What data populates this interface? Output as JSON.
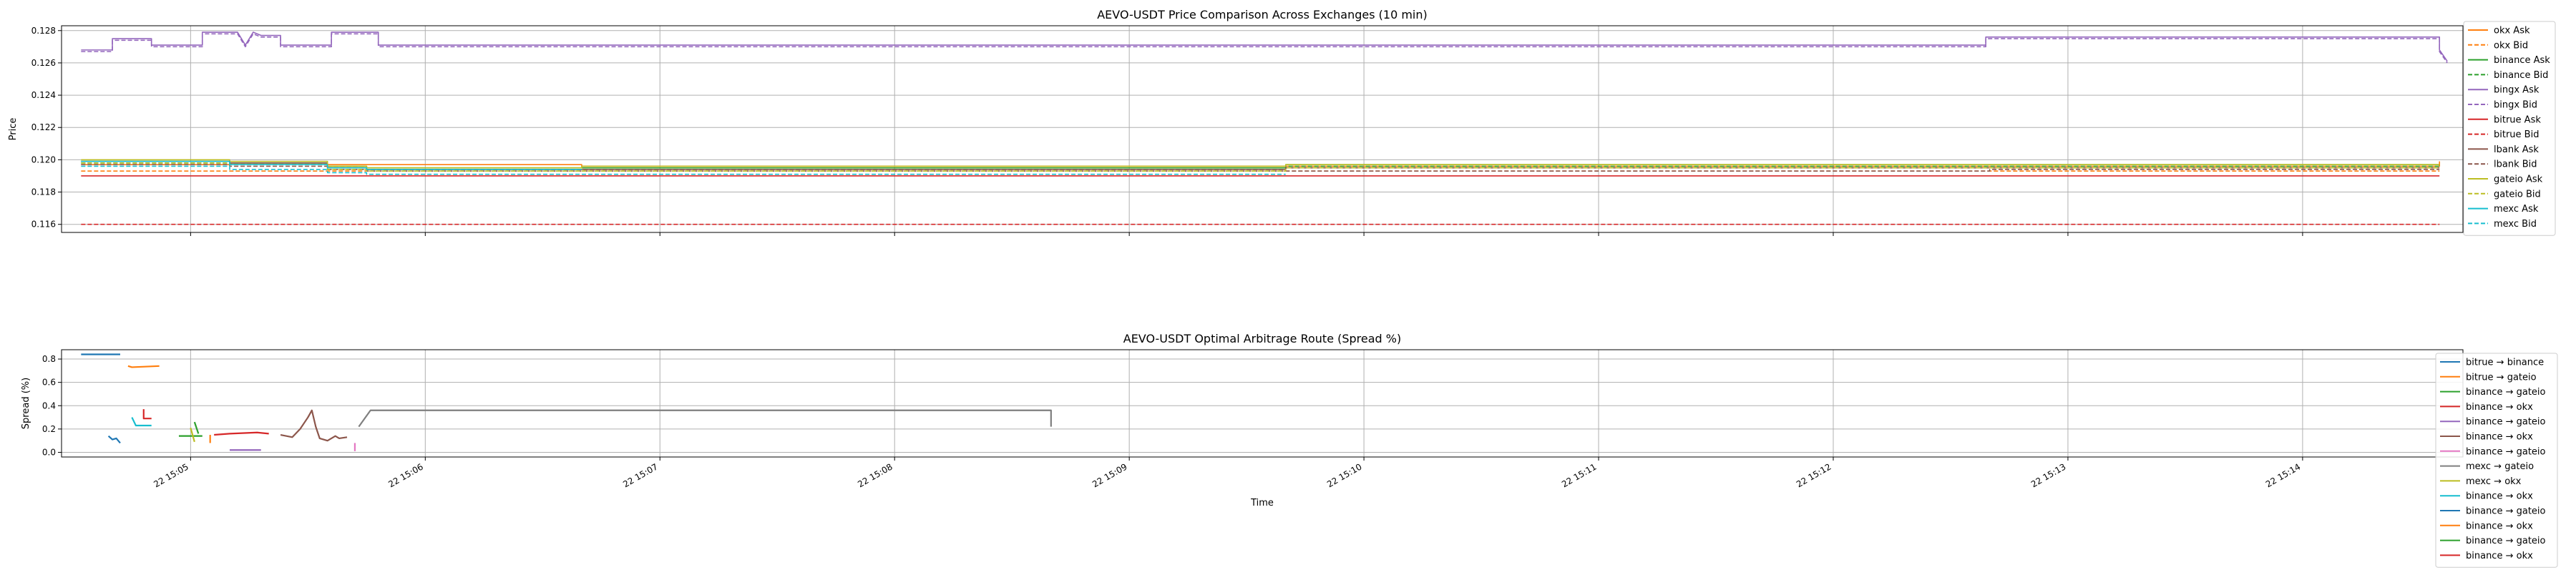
{
  "colors": {
    "blue": "#1f77b4",
    "orange": "#ff7f0e",
    "green": "#2ca02c",
    "red": "#d62728",
    "purple": "#9467bd",
    "brown": "#8c564b",
    "pink": "#e377c2",
    "gray": "#7f7f7f",
    "olive": "#bcbd22",
    "cyan": "#17becf"
  },
  "chart_data": [
    {
      "type": "line",
      "title": "AEVO-USDT Price Comparison Across Exchanges (10 min)",
      "xlabel": "",
      "ylabel": "Price",
      "xlim": [
        "15:04:27",
        "15:14:41"
      ],
      "ylim": [
        0.1155,
        0.1283
      ],
      "yticks": [
        "0.116",
        "0.118",
        "0.120",
        "0.122",
        "0.124",
        "0.126",
        "0.128"
      ],
      "grid": true,
      "legend_position": "right",
      "series": [
        {
          "name": "okx Ask",
          "color": "#ff7f0e",
          "dash": "solid",
          "points": [
            [
              "15:04:32",
              0.1197
            ],
            [
              "15:06:40",
              0.1197
            ],
            [
              "15:06:40",
              0.1196
            ],
            [
              "15:14:35",
              0.1196
            ],
            [
              "15:14:35",
              0.1199
            ]
          ]
        },
        {
          "name": "okx Bid",
          "color": "#ff7f0e",
          "dash": "dashed",
          "points": [
            [
              "15:04:32",
              0.1193
            ],
            [
              "15:14:35",
              0.1193
            ]
          ]
        },
        {
          "name": "binance Ask",
          "color": "#2ca02c",
          "dash": "solid",
          "points": [
            [
              "15:04:32",
              0.1199
            ],
            [
              "15:05:10",
              0.1199
            ],
            [
              "15:05:10",
              0.1198
            ],
            [
              "15:05:35",
              0.1198
            ],
            [
              "15:05:35",
              0.1196
            ],
            [
              "15:05:45",
              0.1196
            ],
            [
              "15:05:45",
              0.1195
            ],
            [
              "15:09:40",
              0.1195
            ],
            [
              "15:09:40",
              0.1197
            ],
            [
              "15:14:35",
              0.1197
            ]
          ]
        },
        {
          "name": "binance Bid",
          "color": "#2ca02c",
          "dash": "dashed",
          "points": [
            [
              "15:04:32",
              0.1198
            ],
            [
              "15:05:10",
              0.1198
            ],
            [
              "15:05:10",
              0.1197
            ],
            [
              "15:05:35",
              0.1197
            ],
            [
              "15:05:35",
              0.1195
            ],
            [
              "15:05:45",
              0.1195
            ],
            [
              "15:05:45",
              0.1194
            ],
            [
              "15:09:40",
              0.1194
            ],
            [
              "15:09:40",
              0.1196
            ],
            [
              "15:14:35",
              0.1196
            ]
          ]
        },
        {
          "name": "bingx Ask",
          "color": "#9467bd",
          "dash": "solid",
          "points": [
            [
              "15:04:32",
              0.1268
            ],
            [
              "15:04:40",
              0.1268
            ],
            [
              "15:04:40",
              0.1275
            ],
            [
              "15:04:50",
              0.1275
            ],
            [
              "15:04:50",
              0.1271
            ],
            [
              "15:05:03",
              0.1271
            ],
            [
              "15:05:03",
              0.1279
            ],
            [
              "15:05:12",
              0.1279
            ],
            [
              "15:05:14",
              0.1271
            ],
            [
              "15:05:16",
              0.1279
            ],
            [
              "15:05:18",
              0.1277
            ],
            [
              "15:05:23",
              0.1277
            ],
            [
              "15:05:23",
              0.1271
            ],
            [
              "15:05:36",
              0.1271
            ],
            [
              "15:05:36",
              0.1279
            ],
            [
              "15:05:48",
              0.1279
            ],
            [
              "15:05:48",
              0.1271
            ],
            [
              "15:12:39",
              0.1271
            ],
            [
              "15:12:39",
              0.1276
            ],
            [
              "15:14:35",
              0.1276
            ],
            [
              "15:14:35",
              0.1268
            ],
            [
              "15:14:37",
              0.1261
            ]
          ]
        },
        {
          "name": "bingx Bid",
          "color": "#9467bd",
          "dash": "dashed",
          "points": [
            [
              "15:04:32",
              0.1267
            ],
            [
              "15:04:40",
              0.1267
            ],
            [
              "15:04:40",
              0.1274
            ],
            [
              "15:04:50",
              0.1274
            ],
            [
              "15:04:50",
              0.127
            ],
            [
              "15:05:03",
              0.127
            ],
            [
              "15:05:03",
              0.1278
            ],
            [
              "15:05:12",
              0.1278
            ],
            [
              "15:05:14",
              0.127
            ],
            [
              "15:05:16",
              0.1278
            ],
            [
              "15:05:18",
              0.1276
            ],
            [
              "15:05:23",
              0.1276
            ],
            [
              "15:05:23",
              0.127
            ],
            [
              "15:05:36",
              0.127
            ],
            [
              "15:05:36",
              0.1278
            ],
            [
              "15:05:48",
              0.1278
            ],
            [
              "15:05:48",
              0.127
            ],
            [
              "15:12:39",
              0.127
            ],
            [
              "15:12:39",
              0.1275
            ],
            [
              "15:14:35",
              0.1275
            ],
            [
              "15:14:35",
              0.1267
            ],
            [
              "15:14:37",
              0.126
            ]
          ]
        },
        {
          "name": "bitrue Ask",
          "color": "#d62728",
          "dash": "solid",
          "points": [
            [
              "15:04:32",
              0.119
            ],
            [
              "15:14:35",
              0.119
            ]
          ]
        },
        {
          "name": "bitrue Bid",
          "color": "#d62728",
          "dash": "dashed",
          "points": [
            [
              "15:04:32",
              0.116
            ],
            [
              "15:14:35",
              0.116
            ]
          ]
        },
        {
          "name": "lbank Ask",
          "color": "#8c564b",
          "dash": "solid",
          "points": [
            [
              "15:04:32",
              0.1199
            ],
            [
              "15:05:10",
              0.1199
            ],
            [
              "15:05:10",
              0.1198
            ],
            [
              "15:05:35",
              0.1198
            ],
            [
              "15:05:35",
              0.1195
            ],
            [
              "15:05:45",
              0.1195
            ],
            [
              "15:05:45",
              0.1194
            ],
            [
              "15:09:40",
              0.1194
            ],
            [
              "15:09:40",
              0.1195
            ],
            [
              "15:14:35",
              0.1195
            ]
          ]
        },
        {
          "name": "lbank Bid",
          "color": "#8c564b",
          "dash": "dashed",
          "points": [
            [
              "15:04:32",
              0.1197
            ],
            [
              "15:05:10",
              0.1197
            ],
            [
              "15:05:10",
              0.1196
            ],
            [
              "15:05:35",
              0.1196
            ],
            [
              "15:05:35",
              0.1194
            ],
            [
              "15:05:45",
              0.1194
            ],
            [
              "15:05:45",
              0.1193
            ],
            [
              "15:12:40",
              0.1193
            ],
            [
              "15:12:40",
              0.1194
            ],
            [
              "15:14:35",
              0.1194
            ]
          ]
        },
        {
          "name": "gateio Ask",
          "color": "#bcbd22",
          "dash": "solid",
          "points": [
            [
              "15:04:32",
              0.12
            ],
            [
              "15:05:10",
              0.12
            ],
            [
              "15:05:10",
              0.1199
            ],
            [
              "15:05:35",
              0.1199
            ],
            [
              "15:05:35",
              0.1196
            ],
            [
              "15:05:45",
              0.1196
            ],
            [
              "15:05:45",
              0.1195
            ],
            [
              "15:06:40",
              0.1195
            ],
            [
              "15:06:40",
              0.1196
            ],
            [
              "15:09:40",
              0.1196
            ],
            [
              "15:09:40",
              0.1197
            ],
            [
              "15:14:35",
              0.1197
            ]
          ]
        },
        {
          "name": "gateio Bid",
          "color": "#bcbd22",
          "dash": "dashed",
          "points": [
            [
              "15:04:32",
              0.1198
            ],
            [
              "15:05:10",
              0.1198
            ],
            [
              "15:05:10",
              0.1197
            ],
            [
              "15:05:35",
              0.1197
            ],
            [
              "15:05:35",
              0.1194
            ],
            [
              "15:05:45",
              0.1194
            ],
            [
              "15:05:45",
              0.1193
            ],
            [
              "15:09:40",
              0.1193
            ],
            [
              "15:09:40",
              0.1195
            ],
            [
              "15:14:35",
              0.1195
            ]
          ]
        },
        {
          "name": "mexc Ask",
          "color": "#17becf",
          "dash": "solid",
          "points": [
            [
              "15:04:32",
              0.1199
            ],
            [
              "15:05:10",
              0.1199
            ],
            [
              "15:05:10",
              0.1197
            ],
            [
              "15:05:35",
              0.1197
            ],
            [
              "15:05:35",
              0.1195
            ],
            [
              "15:05:45",
              0.1195
            ],
            [
              "15:05:45",
              0.1194
            ],
            [
              "15:06:40",
              0.1194
            ]
          ]
        },
        {
          "name": "mexc Bid",
          "color": "#17becf",
          "dash": "dashed",
          "points": [
            [
              "15:04:32",
              0.1196
            ],
            [
              "15:05:10",
              0.1196
            ],
            [
              "15:05:10",
              0.1194
            ],
            [
              "15:05:35",
              0.1194
            ],
            [
              "15:05:35",
              0.1192
            ],
            [
              "15:05:45",
              0.1192
            ],
            [
              "15:05:45",
              0.1191
            ],
            [
              "15:09:40",
              0.1191
            ]
          ]
        }
      ]
    },
    {
      "type": "line",
      "title": "AEVO-USDT Optimal Arbitrage Route (Spread %)",
      "xlabel": "Time",
      "ylabel": "Spread (%)",
      "xlim": [
        "15:04:27",
        "15:14:41"
      ],
      "ylim": [
        -0.04,
        0.88
      ],
      "yticks": [
        "0.0",
        "0.2",
        "0.4",
        "0.6",
        "0.8"
      ],
      "xticks": [
        "22 15:05",
        "22 15:06",
        "22 15:07",
        "22 15:08",
        "22 15:09",
        "22 15:10",
        "22 15:11",
        "22 15:12",
        "22 15:13",
        "22 15:14"
      ],
      "grid": true,
      "legend_position": "right",
      "series": [
        {
          "name": "bitrue → binance",
          "color": "#1f77b4",
          "points": [
            [
              "15:04:32",
              0.84
            ],
            [
              "15:04:42",
              0.84
            ]
          ]
        },
        {
          "name": "bitrue → gateio",
          "color": "#ff7f0e",
          "points": [
            [
              "15:04:44",
              0.74
            ],
            [
              "15:04:45",
              0.73
            ],
            [
              "15:04:52",
              0.74
            ]
          ]
        },
        {
          "name": "binance → gateio",
          "color": "#2ca02c",
          "points": [
            [
              "15:04:57",
              0.14
            ],
            [
              "15:05:03",
              0.14
            ]
          ]
        },
        {
          "name": "binance → okx",
          "color": "#d62728",
          "points": [
            [
              "15:04:48",
              0.37
            ],
            [
              "15:04:48",
              0.29
            ],
            [
              "15:04:50",
              0.29
            ]
          ]
        },
        {
          "name": "binance → gateio",
          "color": "#9467bd",
          "points": [
            [
              "15:05:10",
              0.02
            ],
            [
              "15:05:18",
              0.02
            ]
          ]
        },
        {
          "name": "binance → okx",
          "color": "#8c564b",
          "points": [
            [
              "15:05:23",
              0.15
            ],
            [
              "15:05:26",
              0.13
            ],
            [
              "15:05:28",
              0.2
            ],
            [
              "15:05:30",
              0.3
            ],
            [
              "15:05:31",
              0.36
            ],
            [
              "15:05:32",
              0.22
            ],
            [
              "15:05:33",
              0.12
            ],
            [
              "15:05:35",
              0.1
            ],
            [
              "15:05:37",
              0.14
            ],
            [
              "15:05:38",
              0.12
            ],
            [
              "15:05:40",
              0.13
            ]
          ]
        },
        {
          "name": "binance → gateio",
          "color": "#e377c2",
          "points": [
            [
              "15:05:42",
              0.08
            ],
            [
              "15:05:42",
              0.01
            ]
          ]
        },
        {
          "name": "mexc → gateio",
          "color": "#7f7f7f",
          "points": [
            [
              "15:05:43",
              0.22
            ],
            [
              "15:05:46",
              0.36
            ],
            [
              "15:08:40",
              0.36
            ],
            [
              "15:08:40",
              0.22
            ]
          ]
        },
        {
          "name": "mexc → okx",
          "color": "#bcbd22",
          "points": [
            [
              "15:05:00",
              0.21
            ],
            [
              "15:05:01",
              0.09
            ]
          ]
        },
        {
          "name": "binance → okx",
          "color": "#17becf",
          "points": [
            [
              "15:04:45",
              0.3
            ],
            [
              "15:04:46",
              0.23
            ],
            [
              "15:04:50",
              0.23
            ]
          ]
        },
        {
          "name": "binance → gateio",
          "color": "#1f77b4",
          "points": [
            [
              "15:04:39",
              0.14
            ],
            [
              "15:04:40",
              0.11
            ],
            [
              "15:04:41",
              0.12
            ],
            [
              "15:04:42",
              0.08
            ]
          ]
        },
        {
          "name": "binance → okx",
          "color": "#ff7f0e",
          "points": [
            [
              "15:05:05",
              0.08
            ],
            [
              "15:05:05",
              0.15
            ]
          ]
        },
        {
          "name": "binance → gateio",
          "color": "#2ca02c",
          "points": [
            [
              "15:05:01",
              0.26
            ],
            [
              "15:05:02",
              0.16
            ]
          ]
        },
        {
          "name": "binance → okx",
          "color": "#d62728",
          "points": [
            [
              "15:05:06",
              0.15
            ],
            [
              "15:05:10",
              0.16
            ],
            [
              "15:05:17",
              0.17
            ],
            [
              "15:05:20",
              0.16
            ]
          ]
        }
      ]
    }
  ]
}
